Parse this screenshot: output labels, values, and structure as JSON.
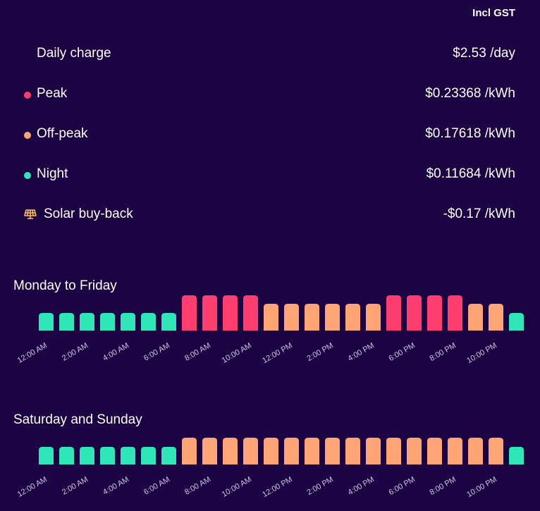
{
  "header": {
    "gst_label": "Incl GST"
  },
  "rates": [
    {
      "label": "Daily charge",
      "value": "$2.53 /day",
      "marker": "none"
    },
    {
      "label": "Peak",
      "value": "$0.23368 /kWh",
      "marker": "dot",
      "color": "#ff3d6e"
    },
    {
      "label": "Off-peak",
      "value": "$0.17618 /kWh",
      "marker": "dot",
      "color": "#ffa474"
    },
    {
      "label": "Night",
      "value": "$0.11684 /kWh",
      "marker": "dot",
      "color": "#2ee6b8"
    },
    {
      "label": "Solar buy-back",
      "value": "-$0.17 /kWh",
      "marker": "solar-panel-icon",
      "color": "#ffc04d"
    }
  ],
  "colors": {
    "peak": "#ff3d6e",
    "offpeak": "#ffa474",
    "night": "#2ee6b8",
    "background": "#1c0444"
  },
  "chart_data": [
    {
      "type": "bar",
      "title": "Monday to Friday",
      "categories": [
        "12:00 AM",
        "1:00 AM",
        "2:00 AM",
        "3:00 AM",
        "4:00 AM",
        "5:00 AM",
        "6:00 AM",
        "7:00 AM",
        "8:00 AM",
        "9:00 AM",
        "10:00 AM",
        "11:00 AM",
        "12:00 PM",
        "1:00 PM",
        "2:00 PM",
        "3:00 PM",
        "4:00 PM",
        "5:00 PM",
        "6:00 PM",
        "7:00 PM",
        "8:00 PM",
        "9:00 PM",
        "10:00 PM",
        "11:00 PM"
      ],
      "tick_labels": [
        "12:00 AM",
        "2:00 AM",
        "4:00 AM",
        "6:00 AM",
        "8:00 AM",
        "10:00 AM",
        "12:00 PM",
        "2:00 PM",
        "4:00 PM",
        "6:00 PM",
        "8:00 PM",
        "10:00 PM"
      ],
      "periods": [
        "night",
        "night",
        "night",
        "night",
        "night",
        "night",
        "night",
        "peak",
        "peak",
        "peak",
        "peak",
        "offpeak",
        "offpeak",
        "offpeak",
        "offpeak",
        "offpeak",
        "offpeak",
        "peak",
        "peak",
        "peak",
        "peak",
        "offpeak",
        "offpeak",
        "night"
      ],
      "values": [
        0.11684,
        0.11684,
        0.11684,
        0.11684,
        0.11684,
        0.11684,
        0.11684,
        0.23368,
        0.23368,
        0.23368,
        0.23368,
        0.17618,
        0.17618,
        0.17618,
        0.17618,
        0.17618,
        0.17618,
        0.23368,
        0.23368,
        0.23368,
        0.23368,
        0.17618,
        0.17618,
        0.11684
      ]
    },
    {
      "type": "bar",
      "title": "Saturday and Sunday",
      "categories": [
        "12:00 AM",
        "1:00 AM",
        "2:00 AM",
        "3:00 AM",
        "4:00 AM",
        "5:00 AM",
        "6:00 AM",
        "7:00 AM",
        "8:00 AM",
        "9:00 AM",
        "10:00 AM",
        "11:00 AM",
        "12:00 PM",
        "1:00 PM",
        "2:00 PM",
        "3:00 PM",
        "4:00 PM",
        "5:00 PM",
        "6:00 PM",
        "7:00 PM",
        "8:00 PM",
        "9:00 PM",
        "10:00 PM",
        "11:00 PM"
      ],
      "tick_labels": [
        "12:00 AM",
        "2:00 AM",
        "4:00 AM",
        "6:00 AM",
        "8:00 AM",
        "10:00 AM",
        "12:00 PM",
        "2:00 PM",
        "4:00 PM",
        "6:00 PM",
        "8:00 PM",
        "10:00 PM"
      ],
      "periods": [
        "night",
        "night",
        "night",
        "night",
        "night",
        "night",
        "night",
        "offpeak",
        "offpeak",
        "offpeak",
        "offpeak",
        "offpeak",
        "offpeak",
        "offpeak",
        "offpeak",
        "offpeak",
        "offpeak",
        "offpeak",
        "offpeak",
        "offpeak",
        "offpeak",
        "offpeak",
        "offpeak",
        "night"
      ],
      "values": [
        0.11684,
        0.11684,
        0.11684,
        0.11684,
        0.11684,
        0.11684,
        0.11684,
        0.17618,
        0.17618,
        0.17618,
        0.17618,
        0.17618,
        0.17618,
        0.17618,
        0.17618,
        0.17618,
        0.17618,
        0.17618,
        0.17618,
        0.17618,
        0.17618,
        0.17618,
        0.17618,
        0.11684
      ]
    }
  ]
}
